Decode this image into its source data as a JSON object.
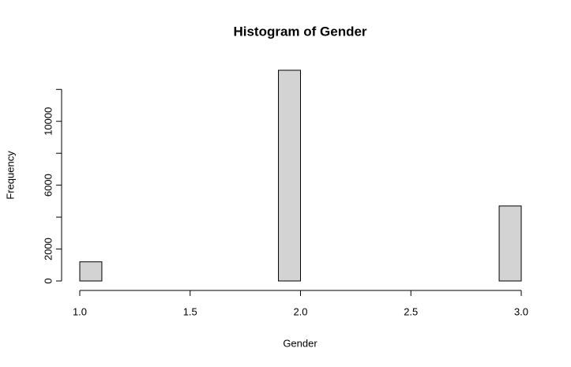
{
  "chart_data": {
    "type": "histogram",
    "title": "Histogram of Gender",
    "x_label": "Gender",
    "y_label": "Frequency",
    "bins": [
      1.0,
      1.1,
      1.2,
      1.3,
      1.4,
      1.5,
      1.6,
      1.7,
      1.8,
      1.9,
      2.0,
      2.1,
      2.2,
      2.3,
      2.4,
      2.5,
      2.6,
      2.7,
      2.8,
      2.9,
      3.0
    ],
    "values": [
      1200,
      0,
      0,
      0,
      0,
      0,
      0,
      0,
      0,
      13200,
      0,
      0,
      0,
      0,
      0,
      0,
      0,
      0,
      0,
      4700
    ],
    "color": "#d3d3d3",
    "xlim": [
      1.0,
      3.0
    ],
    "xticks": [
      {
        "value": 1.0,
        "label": "1.0"
      },
      {
        "value": 1.5,
        "label": "1.5"
      },
      {
        "value": 2.0,
        "label": "2.0"
      },
      {
        "value": 2.5,
        "label": "2.5"
      },
      {
        "value": 3.0,
        "label": "3.0"
      }
    ],
    "ylim": [
      0,
      13200
    ],
    "yticks": [
      0,
      2000,
      {
        "value": 4000,
        "label": null
      },
      6000,
      {
        "value": 8000,
        "label": null
      },
      10000,
      {
        "value": 12000,
        "label": null
      }
    ]
  }
}
